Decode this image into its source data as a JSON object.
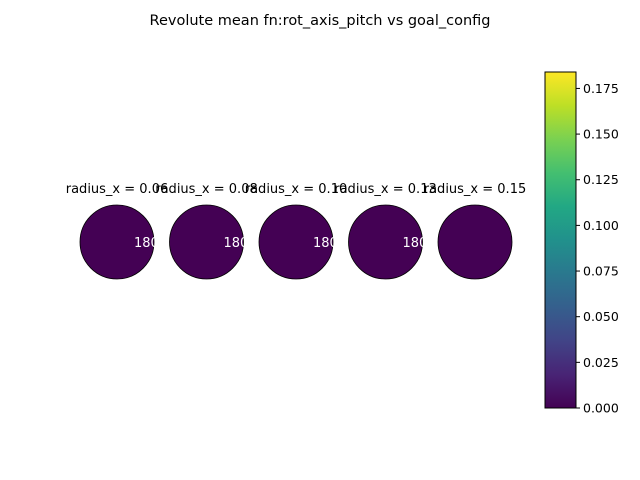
{
  "chart_data": {
    "type": "heatmap",
    "title": "Revolute mean fn:rot_axis_pitch vs goal_config",
    "panels": [
      {
        "label": "radius_x = 0.06",
        "value": 0.0,
        "annotation": "180"
      },
      {
        "label": "radius_x = 0.08",
        "value": 0.0,
        "annotation": "180"
      },
      {
        "label": "radius_x = 0.10",
        "value": 0.0,
        "annotation": "180"
      },
      {
        "label": "radius_x = 0.13",
        "value": 0.0,
        "annotation": "180"
      },
      {
        "label": "radius_x = 0.15",
        "value": 0.0,
        "annotation": ""
      }
    ],
    "colorbar": {
      "colormap": "viridis",
      "range": [
        0,
        0.184
      ],
      "ticks": [
        0.0,
        0.025,
        0.05,
        0.075,
        0.1,
        0.125,
        0.15,
        0.175
      ],
      "tick_labels": [
        "0.000",
        "0.025",
        "0.050",
        "0.075",
        "0.100",
        "0.125",
        "0.150",
        "0.175"
      ]
    }
  },
  "colors": {
    "circle_edge": "#000000",
    "annotation_text": "#ffffff"
  }
}
